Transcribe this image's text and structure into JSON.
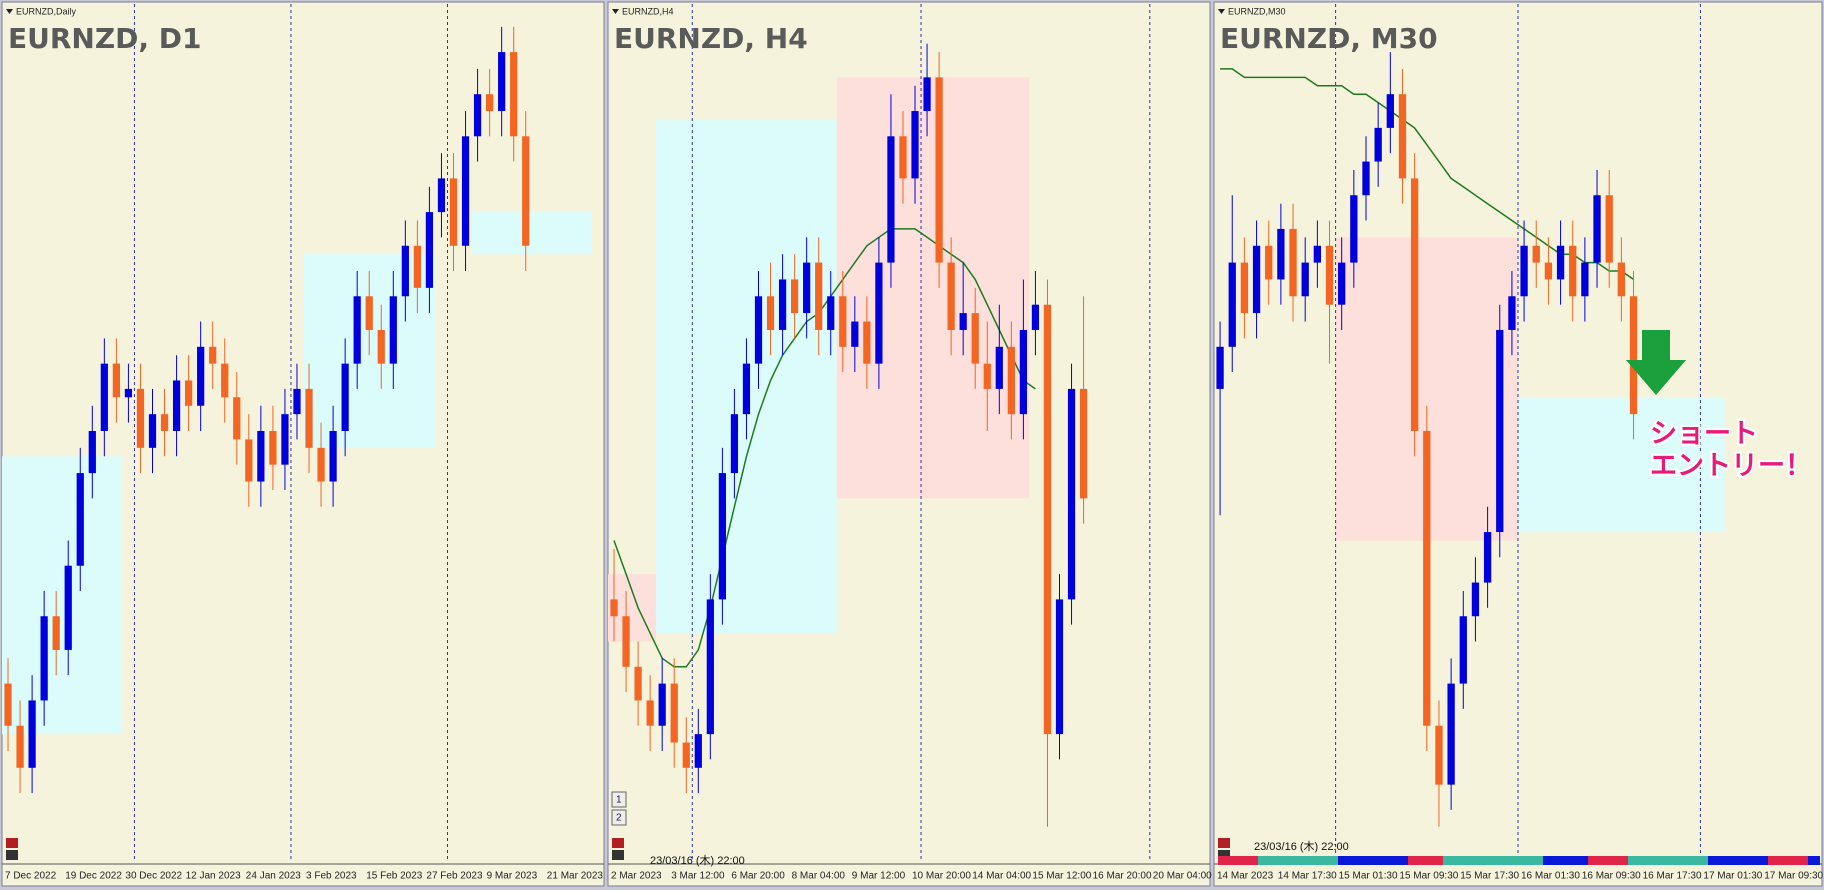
{
  "chart_data": [
    {
      "type": "candlestick",
      "window_label": "EURNZD,Daily",
      "title": "EURNZD, D1",
      "ylim": [
        0,
        100
      ],
      "up_color": "#0000dd",
      "down_color": "#f26522",
      "categories": [
        "7 Dec 2022",
        null,
        null,
        null,
        null,
        "19 Dec 2022",
        null,
        null,
        null,
        null,
        "30 Dec 2022",
        null,
        null,
        null,
        null,
        "12 Jan 2023",
        null,
        null,
        null,
        null,
        "24 Jan 2023",
        null,
        null,
        null,
        null,
        "3 Feb 2023",
        null,
        null,
        null,
        null,
        "15 Feb 2023",
        null,
        null,
        null,
        null,
        "27 Feb 2023",
        null,
        null,
        null,
        null,
        "9 Mar 2023",
        null,
        null,
        null,
        null,
        "21 Mar 2023",
        null,
        null,
        null,
        null
      ],
      "ohlc": [
        [
          20,
          23,
          12,
          15
        ],
        [
          15,
          18,
          7,
          10
        ],
        [
          10,
          21,
          7,
          18
        ],
        [
          18,
          31,
          15,
          28
        ],
        [
          28,
          31,
          21,
          24
        ],
        [
          24,
          37,
          21,
          34
        ],
        [
          34,
          48,
          31,
          45
        ],
        [
          45,
          53,
          42,
          50
        ],
        [
          50,
          61,
          47,
          58
        ],
        [
          58,
          61,
          51,
          54
        ],
        [
          54,
          58,
          51,
          55
        ],
        [
          55,
          58,
          45,
          48
        ],
        [
          48,
          55,
          45,
          52
        ],
        [
          52,
          55,
          47,
          50
        ],
        [
          50,
          59,
          47,
          56
        ],
        [
          56,
          59,
          50,
          53
        ],
        [
          53,
          63,
          50,
          60
        ],
        [
          60,
          63,
          55,
          58
        ],
        [
          58,
          61,
          51,
          54
        ],
        [
          54,
          57,
          46,
          49
        ],
        [
          49,
          52,
          41,
          44
        ],
        [
          44,
          53,
          41,
          50
        ],
        [
          50,
          53,
          43,
          46
        ],
        [
          46,
          55,
          43,
          52
        ],
        [
          52,
          58,
          49,
          55
        ],
        [
          55,
          58,
          45,
          48
        ],
        [
          48,
          51,
          41,
          44
        ],
        [
          44,
          53,
          41,
          50
        ],
        [
          50,
          61,
          47,
          58
        ],
        [
          58,
          69,
          55,
          66
        ],
        [
          66,
          69,
          59,
          62
        ],
        [
          62,
          65,
          55,
          58
        ],
        [
          58,
          69,
          55,
          66
        ],
        [
          66,
          75,
          63,
          72
        ],
        [
          72,
          75,
          64,
          67
        ],
        [
          67,
          79,
          64,
          76
        ],
        [
          76,
          83,
          73,
          80
        ],
        [
          80,
          83,
          69,
          72
        ],
        [
          72,
          88,
          69,
          85
        ],
        [
          85,
          93,
          82,
          90
        ],
        [
          90,
          93,
          85,
          88
        ],
        [
          88,
          98,
          85,
          95
        ],
        [
          95,
          98,
          82,
          85
        ],
        [
          85,
          88,
          69,
          72
        ],
        null,
        null,
        null,
        null,
        null,
        null
      ],
      "zones": [
        {
          "from": 0,
          "to": 10,
          "low": 14,
          "high": 47,
          "color": "#dcfcfc"
        },
        {
          "from": 25,
          "to": 36,
          "low": 48,
          "high": 71,
          "color": "#dcfcfc"
        },
        {
          "from": 39,
          "to": 49,
          "low": 71,
          "high": 76,
          "color": "#dcfcfc"
        }
      ],
      "separators": [
        11,
        24,
        37
      ]
    },
    {
      "type": "candlestick",
      "window_label": "EURNZD,H4",
      "title": "EURNZD, H4",
      "ylim": [
        0,
        100
      ],
      "up_color": "#0000dd",
      "down_color": "#f26522",
      "ma_color": "#1f7a1f",
      "timestamp": "23/03/16 (木) 22:00",
      "buttons": [
        "1",
        "2"
      ],
      "categories": [
        "2 Mar 2023",
        null,
        null,
        null,
        null,
        "3 Mar 12:00",
        null,
        null,
        null,
        null,
        "6 Mar 20:00",
        null,
        null,
        null,
        null,
        "8 Mar 04:00",
        null,
        null,
        null,
        null,
        "9 Mar 12:00",
        null,
        null,
        null,
        null,
        "10 Mar 20:00",
        null,
        null,
        null,
        null,
        "14 Mar 04:00",
        null,
        null,
        null,
        null,
        "15 Mar 12:00",
        null,
        null,
        null,
        null,
        "16 Mar 20:00",
        null,
        null,
        null,
        null,
        "20 Mar 04:00",
        null,
        null,
        null,
        null
      ],
      "ohlc": [
        [
          30,
          36,
          25,
          28
        ],
        [
          28,
          31,
          19,
          22
        ],
        [
          22,
          25,
          15,
          18
        ],
        [
          18,
          21,
          12,
          15
        ],
        [
          15,
          23,
          12,
          20
        ],
        [
          20,
          23,
          10,
          13
        ],
        [
          13,
          16,
          7,
          10
        ],
        [
          10,
          17,
          7,
          14
        ],
        [
          14,
          33,
          11,
          30
        ],
        [
          30,
          48,
          27,
          45
        ],
        [
          45,
          55,
          42,
          52
        ],
        [
          52,
          61,
          49,
          58
        ],
        [
          58,
          69,
          55,
          66
        ],
        [
          66,
          70,
          59,
          62
        ],
        [
          62,
          71,
          59,
          68
        ],
        [
          68,
          71,
          61,
          64
        ],
        [
          64,
          73,
          61,
          70
        ],
        [
          70,
          73,
          59,
          62
        ],
        [
          62,
          69,
          59,
          66
        ],
        [
          66,
          69,
          57,
          60
        ],
        [
          60,
          66,
          57,
          63
        ],
        [
          63,
          66,
          55,
          58
        ],
        [
          58,
          73,
          55,
          70
        ],
        [
          70,
          90,
          67,
          85
        ],
        [
          85,
          88,
          77,
          80
        ],
        [
          80,
          91,
          77,
          88
        ],
        [
          88,
          96,
          85,
          92
        ],
        [
          92,
          95,
          67,
          70
        ],
        [
          70,
          73,
          59,
          62
        ],
        [
          62,
          70,
          59,
          64
        ],
        [
          64,
          67,
          55,
          58
        ],
        [
          58,
          63,
          50,
          55
        ],
        [
          55,
          65,
          52,
          60
        ],
        [
          60,
          63,
          49,
          52
        ],
        [
          52,
          68,
          49,
          62
        ],
        [
          62,
          69,
          59,
          65
        ],
        [
          65,
          68,
          3,
          14
        ],
        [
          14,
          33,
          11,
          30
        ],
        [
          30,
          58,
          27,
          55
        ],
        [
          55,
          66,
          39,
          42
        ],
        null,
        null,
        null,
        null,
        null,
        null,
        null,
        null,
        null,
        null
      ],
      "ma": [
        37,
        33,
        29,
        26,
        23,
        22,
        22,
        24,
        29,
        35,
        41,
        47,
        52,
        56,
        59,
        61,
        63,
        64,
        66,
        68,
        70,
        72,
        73,
        74,
        74,
        74,
        73,
        72,
        71,
        70,
        68,
        65,
        62,
        59,
        56,
        55,
        null,
        null,
        null,
        null,
        null,
        null,
        null,
        null,
        null,
        null,
        null,
        null,
        null,
        null
      ],
      "zones": [
        {
          "from": 0,
          "to": 4,
          "low": 25,
          "high": 33,
          "color": "#fde0dc"
        },
        {
          "from": 4,
          "to": 19,
          "low": 26,
          "high": 87,
          "color": "#dcfcfc"
        },
        {
          "from": 19,
          "to": 35,
          "low": 42,
          "high": 92,
          "color": "#fde0dc"
        }
      ],
      "separators": [
        7,
        26,
        45
      ]
    },
    {
      "type": "candlestick",
      "window_label": "EURNZD,M30",
      "title": "EURNZD, M30",
      "ylim": [
        0,
        100
      ],
      "up_color": "#0000dd",
      "down_color": "#f26522",
      "ma_color": "#1f7a1f",
      "timestamp": "23/03/16 (木) 22:00",
      "annotation": [
        "ショート",
        "エントリー！"
      ],
      "categories": [
        "14 Mar 2023",
        null,
        null,
        null,
        null,
        "14 Mar 17:30",
        null,
        null,
        null,
        null,
        "15 Mar 01:30",
        null,
        null,
        null,
        null,
        "15 Mar 09:30",
        null,
        null,
        null,
        null,
        "15 Mar 17:30",
        null,
        null,
        null,
        null,
        "16 Mar 01:30",
        null,
        null,
        null,
        null,
        "16 Mar 09:30",
        null,
        null,
        null,
        null,
        "16 Mar 17:30",
        null,
        null,
        null,
        null,
        "17 Mar 01:30",
        null,
        null,
        null,
        null,
        "17 Mar 09:30",
        null,
        null,
        null,
        null
      ],
      "ohlc": [
        [
          55,
          63,
          40,
          60
        ],
        [
          60,
          78,
          57,
          70
        ],
        [
          70,
          73,
          61,
          64
        ],
        [
          64,
          75,
          61,
          72
        ],
        [
          72,
          75,
          65,
          68
        ],
        [
          68,
          77,
          65,
          74
        ],
        [
          74,
          77,
          63,
          66
        ],
        [
          66,
          73,
          63,
          70
        ],
        [
          70,
          75,
          67,
          72
        ],
        [
          72,
          75,
          58,
          65
        ],
        [
          65,
          73,
          62,
          70
        ],
        [
          70,
          81,
          67,
          78
        ],
        [
          78,
          85,
          75,
          82
        ],
        [
          82,
          89,
          79,
          86
        ],
        [
          86,
          95,
          83,
          90
        ],
        [
          90,
          93,
          77,
          80
        ],
        [
          80,
          83,
          47,
          50
        ],
        [
          50,
          53,
          12,
          15
        ],
        [
          15,
          18,
          3,
          8
        ],
        [
          8,
          23,
          5,
          20
        ],
        [
          20,
          31,
          17,
          28
        ],
        [
          28,
          35,
          25,
          32
        ],
        [
          32,
          41,
          29,
          38
        ],
        [
          38,
          65,
          35,
          62
        ],
        [
          62,
          69,
          59,
          66
        ],
        [
          66,
          75,
          63,
          72
        ],
        [
          72,
          75,
          67,
          70
        ],
        [
          70,
          73,
          65,
          68
        ],
        [
          68,
          75,
          65,
          72
        ],
        [
          72,
          75,
          63,
          66
        ],
        [
          66,
          73,
          63,
          70
        ],
        [
          70,
          81,
          67,
          78
        ],
        [
          78,
          81,
          67,
          70
        ],
        [
          70,
          73,
          63,
          66
        ],
        [
          66,
          69,
          49,
          52
        ],
        null,
        null,
        null,
        null,
        null,
        null,
        null,
        null,
        null,
        null,
        null,
        null,
        null,
        null,
        null
      ],
      "ma": [
        93,
        93,
        92,
        92,
        92,
        92,
        92,
        92,
        91,
        91,
        91,
        90,
        90,
        89,
        88,
        87,
        86,
        84,
        82,
        80,
        79,
        78,
        77,
        76,
        75,
        74,
        73,
        72,
        71,
        71,
        70,
        70,
        69,
        69,
        68,
        null,
        null,
        null,
        null,
        null,
        null,
        null,
        null,
        null,
        null,
        null,
        null,
        null,
        null,
        null
      ],
      "zones": [
        {
          "from": 10,
          "to": 25,
          "low": 37,
          "high": 73,
          "color": "#fde0dc"
        },
        {
          "from": 25,
          "to": 42,
          "low": 38,
          "high": 54,
          "color": "#dcfcfc"
        }
      ],
      "separators": [
        10,
        25,
        40
      ]
    }
  ]
}
